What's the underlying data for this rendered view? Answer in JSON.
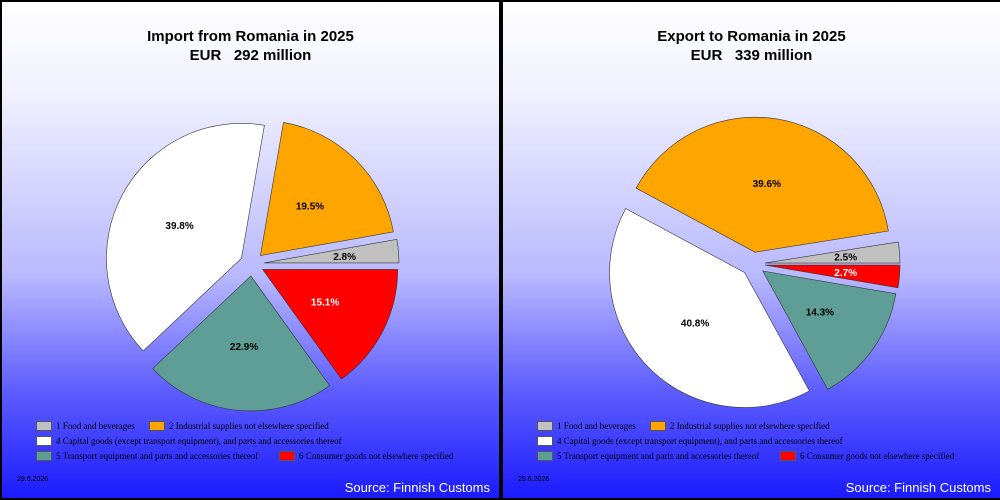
{
  "colors": {
    "food": "#c0c0c0",
    "industrial": "#ffa500",
    "capital": "#ffffff",
    "transport": "#5f9e96",
    "consumer": "#ff0000"
  },
  "legend": [
    {
      "key": "food",
      "label": "1 Food and beverages"
    },
    {
      "key": "industrial",
      "label": "2 Industrial supplies not elsewhere specified"
    },
    {
      "key": "capital",
      "label": "4 Capital goods (except transport equipment), and parts and accessories thereof"
    },
    {
      "key": "transport",
      "label": "5  Transport equipment and parts and accessories thereof"
    },
    {
      "key": "consumer",
      "label": "6 Consumer goods not elsewhere specified"
    }
  ],
  "date": "29.6.2026",
  "source": "Source: Finnish Customs",
  "chart_data": [
    {
      "type": "pie",
      "title": "Import from Romania in 2025",
      "subtitle": "EUR   292 million",
      "labels": [
        "1 Food and beverages",
        "2 Industrial supplies not elsewhere specified",
        "4 Capital goods (except transport equipment), and parts and accessories thereof",
        "5  Transport equipment and parts and accessories thereof",
        "6 Consumer goods not elsewhere specified"
      ],
      "keys": [
        "food",
        "industrial",
        "capital",
        "transport",
        "consumer"
      ],
      "values": [
        2.8,
        19.5,
        39.8,
        22.9,
        15.1
      ],
      "value_labels": [
        "2.8%",
        "19.5%",
        "39.8%",
        "22.9%",
        "15.1%"
      ],
      "exploded": true
    },
    {
      "type": "pie",
      "title": "Export to Romania in 2025",
      "subtitle": "EUR   339 million",
      "labels": [
        "1 Food and beverages",
        "2 Industrial supplies not elsewhere specified",
        "4 Capital goods (except transport equipment), and parts and accessories thereof",
        "5  Transport equipment and parts and accessories thereof",
        "6 Consumer goods not elsewhere specified"
      ],
      "keys": [
        "food",
        "industrial",
        "capital",
        "transport",
        "consumer"
      ],
      "values": [
        2.5,
        39.6,
        40.8,
        14.3,
        2.7
      ],
      "value_labels": [
        "2.5%",
        "39.6%",
        "40.8%",
        "14.3%",
        "2.7%"
      ],
      "exploded": true
    }
  ]
}
